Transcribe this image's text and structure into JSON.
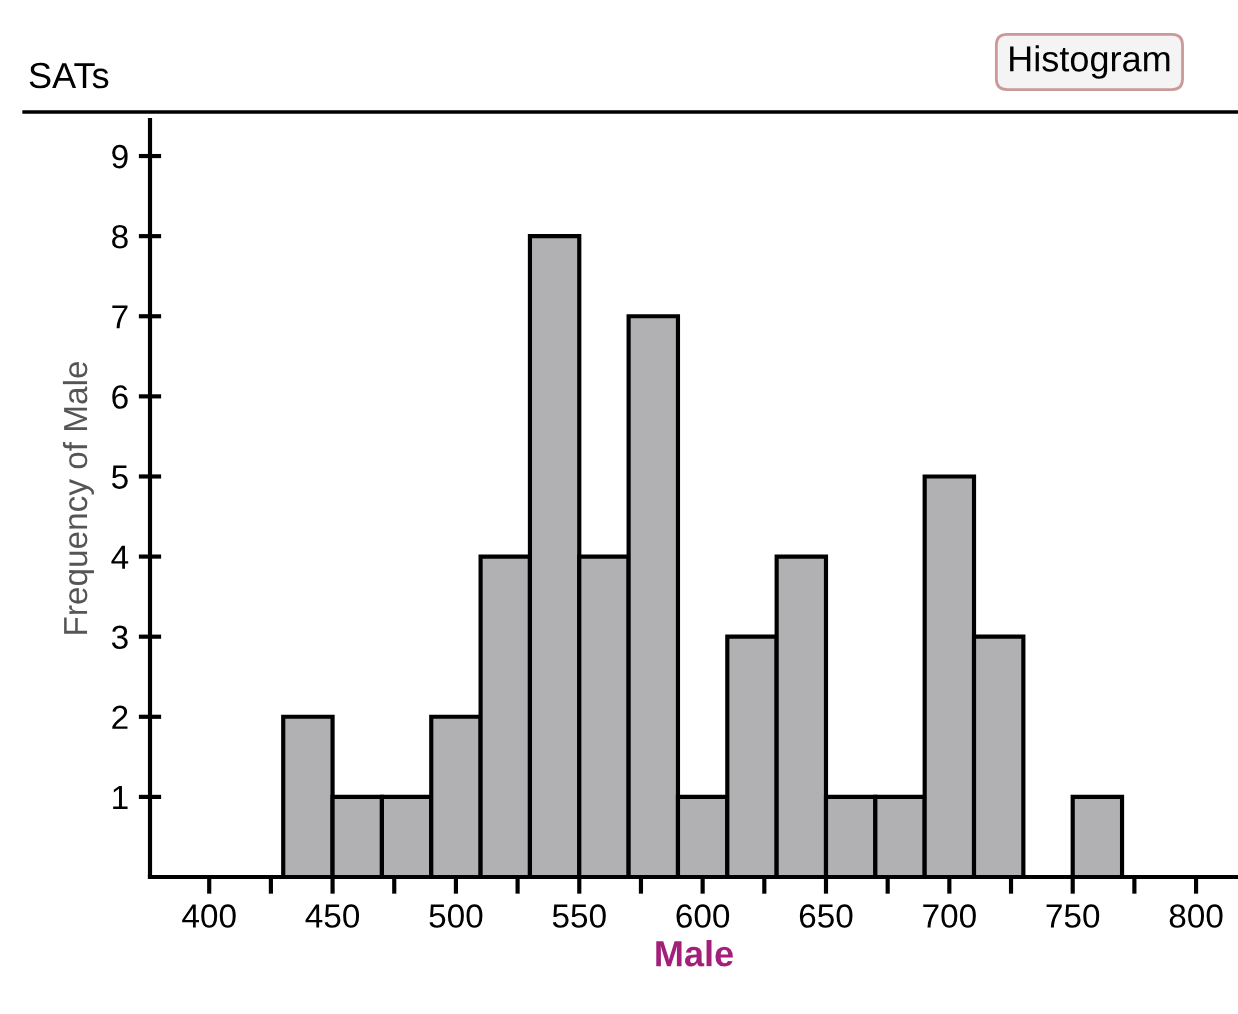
{
  "chart_data": {
    "type": "histogram",
    "title": "SATs",
    "xlabel": "Male",
    "ylabel": "Frequency of Male",
    "annotations": [
      "Histogram"
    ],
    "bins": [
      430,
      450,
      470,
      490,
      510,
      530,
      550,
      570,
      590,
      610,
      630,
      650,
      670,
      690,
      710,
      730,
      750,
      770
    ],
    "values": [
      2,
      1,
      1,
      2,
      4,
      8,
      4,
      7,
      1,
      3,
      4,
      1,
      1,
      5,
      3,
      0,
      1
    ],
    "color": "#b1b1b3",
    "xlim": [
      376,
      817
    ],
    "ylim": [
      0,
      9.45
    ],
    "xticks": [
      400,
      {
        "value": 425,
        "label": null
      },
      450,
      {
        "value": 475,
        "label": null
      },
      500,
      {
        "value": 525,
        "label": null
      },
      550,
      {
        "value": 575,
        "label": null
      },
      600,
      {
        "value": 625,
        "label": null
      },
      650,
      {
        "value": 675,
        "label": null
      },
      700,
      {
        "value": 725,
        "label": null
      },
      750,
      {
        "value": 775,
        "label": null
      },
      800
    ],
    "yticks": [
      1,
      2,
      3,
      4,
      5,
      6,
      7,
      8,
      9
    ],
    "grid": false,
    "legend": false
  }
}
